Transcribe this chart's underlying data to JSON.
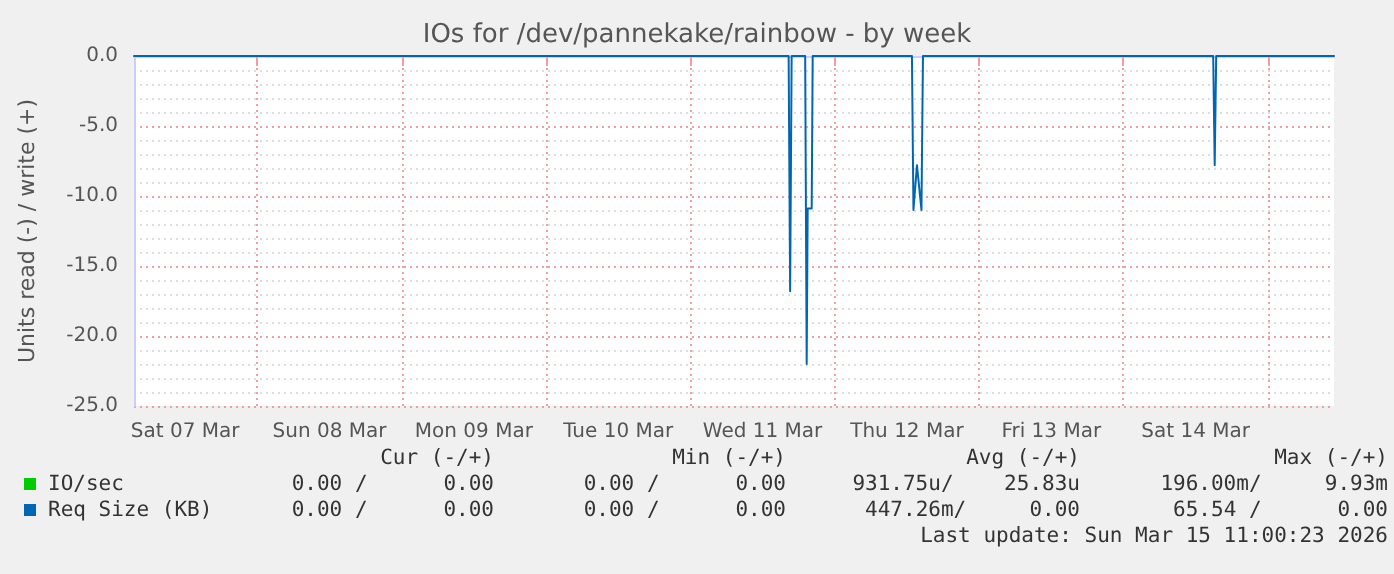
{
  "chart_data": {
    "type": "line",
    "title": "IOs for /dev/pannekake/rainbow - by week",
    "ylabel": "Units read (-) / write (+)",
    "xlim": [
      "2026-03-07T03:30",
      "2026-03-15T11:00"
    ],
    "xticks": [
      {
        "value": "2026-03-07T12:00",
        "label": "Sat 07 Mar"
      },
      {
        "value": "2026-03-08T00:00",
        "label": null
      },
      {
        "value": "2026-03-08T12:00",
        "label": "Sun 08 Mar"
      },
      {
        "value": "2026-03-09T00:00",
        "label": null
      },
      {
        "value": "2026-03-09T12:00",
        "label": "Mon 09 Mar"
      },
      {
        "value": "2026-03-10T00:00",
        "label": null
      },
      {
        "value": "2026-03-10T12:00",
        "label": "Tue 10 Mar"
      },
      {
        "value": "2026-03-11T00:00",
        "label": null
      },
      {
        "value": "2026-03-11T12:00",
        "label": "Wed 11 Mar"
      },
      {
        "value": "2026-03-12T00:00",
        "label": null
      },
      {
        "value": "2026-03-12T12:00",
        "label": "Thu 12 Mar"
      },
      {
        "value": "2026-03-13T00:00",
        "label": null
      },
      {
        "value": "2026-03-13T12:00",
        "label": "Fri 13 Mar"
      },
      {
        "value": "2026-03-14T00:00",
        "label": null
      },
      {
        "value": "2026-03-14T12:00",
        "label": "Sat 14 Mar"
      },
      {
        "value": "2026-03-15T00:00",
        "label": null
      }
    ],
    "ylim": [
      -25,
      0
    ],
    "yticks": [
      {
        "value": 0,
        "label": "0.0"
      },
      {
        "value": -5,
        "label": "-5.0"
      },
      {
        "value": -10,
        "label": "-10.0"
      },
      {
        "value": -15,
        "label": "-15.0"
      },
      {
        "value": -20,
        "label": "-20.0"
      },
      {
        "value": -25,
        "label": "-25.0"
      }
    ],
    "grid": true,
    "legend": "bottom left",
    "marker": "none",
    "line_style": "solid",
    "series": [
      {
        "name": "IO/sec",
        "color": "#00cc00"
      },
      {
        "name": "Req Size (KB)",
        "color": "#0066b3",
        "x": [
          "2026-03-07T03:30",
          "2026-03-11T16:20",
          "2026-03-11T16:35",
          "2026-03-11T16:50",
          "2026-03-11T19:05",
          "2026-03-11T19:20",
          "2026-03-11T19:30",
          "2026-03-11T20:10",
          "2026-03-11T20:20",
          "2026-03-12T12:50",
          "2026-03-12T13:05",
          "2026-03-12T13:40",
          "2026-03-12T14:25",
          "2026-03-12T14:40",
          "2026-03-14T14:55",
          "2026-03-14T15:10",
          "2026-03-14T15:25",
          "2026-03-15T11:00"
        ],
        "values": [
          0,
          0,
          -16.8,
          0,
          0,
          -22.0,
          -10.9,
          -10.9,
          0,
          0,
          -11.0,
          -7.8,
          -11.0,
          0,
          0,
          -7.8,
          0,
          0
        ]
      }
    ],
    "annotations": [
      "Cur (-/+)",
      "Min (-/+)",
      "Avg (-/+)",
      "Max (-/+)",
      "0.00 /      0.00",
      "0.00 /      0.00",
      "931.75u/    25.83u",
      "196.00m/     9.93m",
      "0.00 /      0.00",
      "0.00 /      0.00",
      "447.26m/     0.00",
      "65.54 /      0.00",
      "Last update: Sun Mar 15 11:00:23 2026"
    ]
  }
}
